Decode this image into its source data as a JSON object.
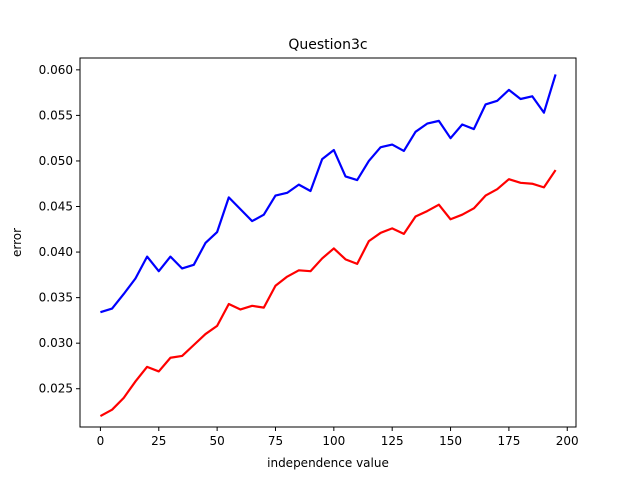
{
  "chart_data": {
    "type": "line",
    "title": "Question3c",
    "xlabel": "independence value",
    "ylabel": "error",
    "xlim": [
      -8.75,
      203.75
    ],
    "ylim": [
      0.0208,
      0.0613
    ],
    "xticks": [
      0,
      25,
      50,
      75,
      100,
      125,
      150,
      175,
      200
    ],
    "xtick_labels": [
      "0",
      "25",
      "50",
      "75",
      "100",
      "125",
      "150",
      "175",
      "200"
    ],
    "yticks": [
      0.025,
      0.03,
      0.035,
      0.04,
      0.045,
      0.05,
      0.055,
      0.06
    ],
    "ytick_labels": [
      "0.025",
      "0.030",
      "0.035",
      "0.040",
      "0.045",
      "0.050",
      "0.055",
      "0.060"
    ],
    "grid": false,
    "x": [
      0,
      5,
      10,
      15,
      20,
      25,
      30,
      35,
      40,
      45,
      50,
      55,
      60,
      65,
      70,
      75,
      80,
      85,
      90,
      95,
      100,
      105,
      110,
      115,
      120,
      125,
      130,
      135,
      140,
      145,
      150,
      155,
      160,
      165,
      170,
      175,
      180,
      185,
      190,
      195
    ],
    "series": [
      {
        "color": "#0000ff",
        "values": [
          0.0334,
          0.0338,
          0.0354,
          0.0371,
          0.0395,
          0.0379,
          0.0395,
          0.0382,
          0.0386,
          0.041,
          0.0422,
          0.046,
          0.0447,
          0.0434,
          0.0441,
          0.0462,
          0.0465,
          0.0474,
          0.0467,
          0.0502,
          0.0512,
          0.0483,
          0.0479,
          0.05,
          0.0515,
          0.0518,
          0.0511,
          0.0532,
          0.0541,
          0.0544,
          0.0525,
          0.054,
          0.0535,
          0.0562,
          0.0566,
          0.0578,
          0.0568,
          0.0571,
          0.0553,
          0.0595
        ]
      },
      {
        "color": "#ff0000",
        "values": [
          0.022,
          0.0227,
          0.024,
          0.0258,
          0.0274,
          0.0269,
          0.0284,
          0.0286,
          0.0298,
          0.031,
          0.0319,
          0.0343,
          0.0337,
          0.0341,
          0.0339,
          0.0363,
          0.0373,
          0.038,
          0.0379,
          0.0393,
          0.0404,
          0.0392,
          0.0387,
          0.0412,
          0.0421,
          0.0426,
          0.042,
          0.0439,
          0.0445,
          0.0452,
          0.0436,
          0.0441,
          0.0448,
          0.0462,
          0.0469,
          0.048,
          0.0476,
          0.0475,
          0.0471,
          0.049
        ]
      }
    ]
  }
}
